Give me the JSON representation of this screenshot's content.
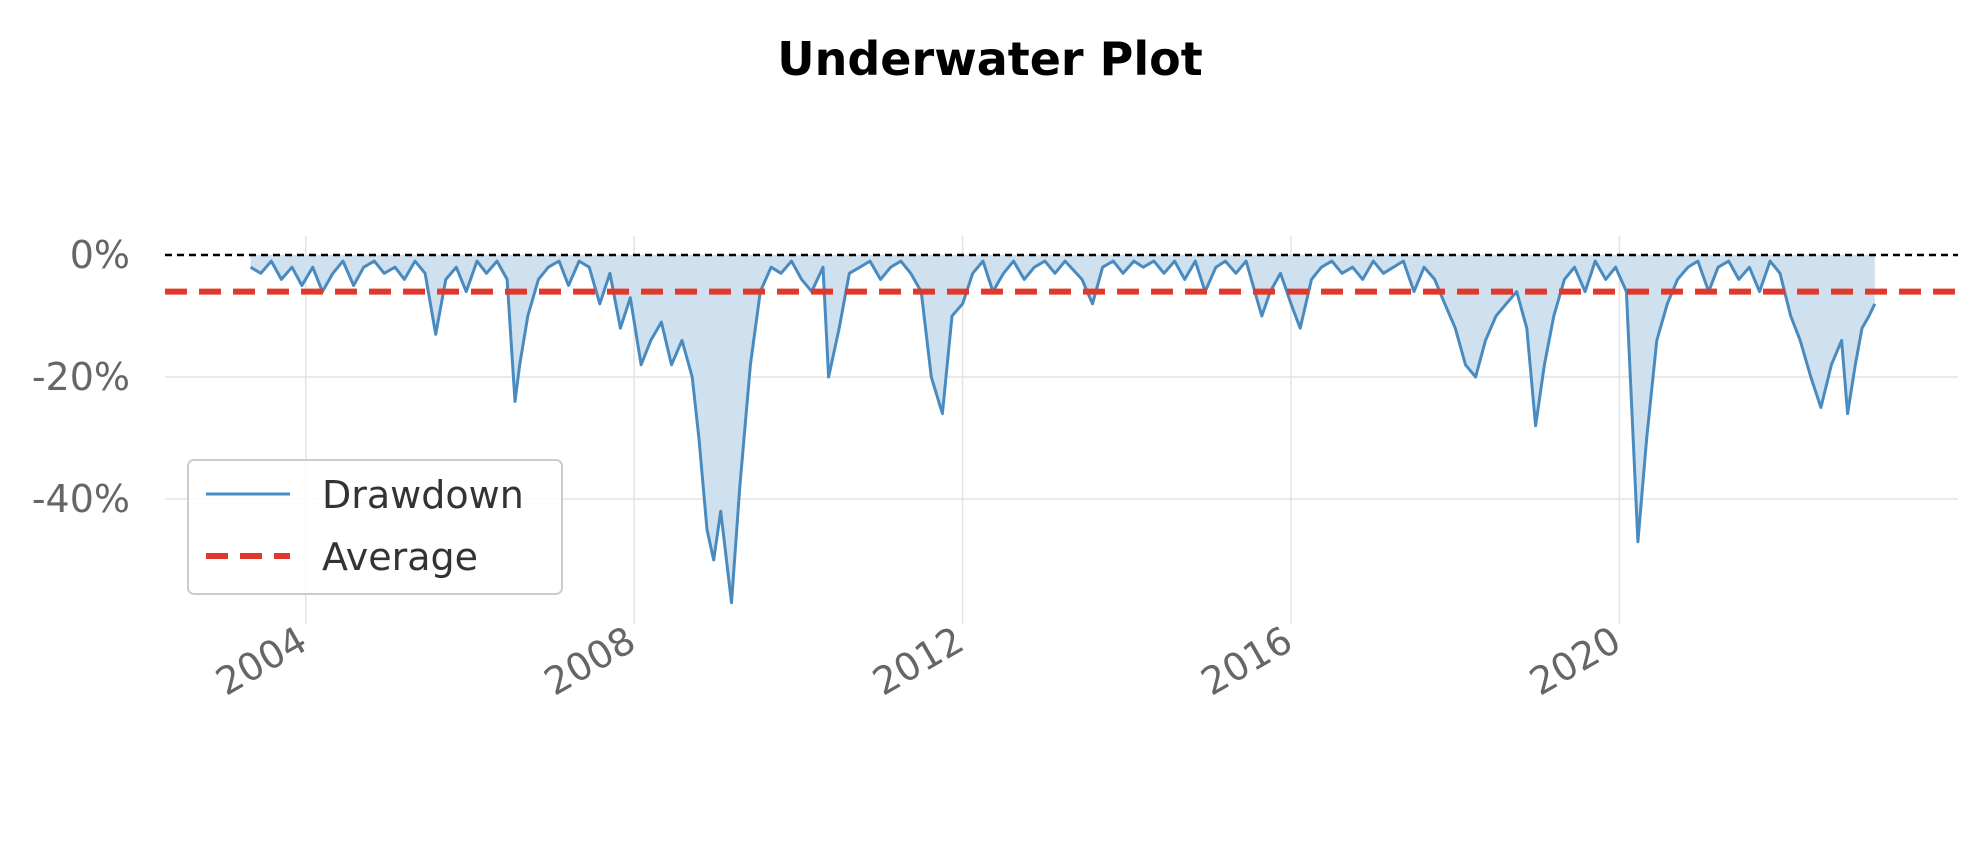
{
  "chart_data": {
    "type": "area",
    "title": "Underwater Plot",
    "xlabel": "",
    "ylabel": "",
    "x_ticks": [
      "2004",
      "2008",
      "2012",
      "2016",
      "2020"
    ],
    "y_ticks": [
      "0%",
      "-20%",
      "-40%"
    ],
    "y_tick_values": [
      0,
      -20,
      -40
    ],
    "xlim": [
      "2002-04-15",
      "2024-02-15"
    ],
    "ylim": [
      -57,
      0
    ],
    "grid": true,
    "legend_position": "lower-left",
    "series": [
      {
        "name": "Drawdown",
        "color": "#4a8bbf",
        "fill_color": "#cfe0ef",
        "x": [
          "2003-05-01",
          "2003-06-15",
          "2003-08-01",
          "2003-09-15",
          "2003-11-01",
          "2003-12-15",
          "2004-02-01",
          "2004-03-15",
          "2004-05-01",
          "2004-06-15",
          "2004-08-01",
          "2004-09-15",
          "2004-11-01",
          "2004-12-15",
          "2005-02-01",
          "2005-03-15",
          "2005-05-01",
          "2005-06-15",
          "2005-08-01",
          "2005-09-15",
          "2005-11-01",
          "2005-12-15",
          "2006-02-01",
          "2006-03-15",
          "2006-05-01",
          "2006-06-15",
          "2006-07-20",
          "2006-08-10",
          "2006-09-15",
          "2006-11-01",
          "2006-12-15",
          "2007-02-01",
          "2007-03-15",
          "2007-05-01",
          "2007-06-15",
          "2007-08-01",
          "2007-09-15",
          "2007-11-01",
          "2007-12-15",
          "2008-02-01",
          "2008-03-15",
          "2008-05-01",
          "2008-06-15",
          "2008-08-01",
          "2008-09-15",
          "2008-10-15",
          "2008-11-20",
          "2008-12-20",
          "2009-01-20",
          "2009-03-09",
          "2009-04-15",
          "2009-06-01",
          "2009-07-15",
          "2009-09-01",
          "2009-10-15",
          "2009-12-01",
          "2010-01-15",
          "2010-03-01",
          "2010-04-20",
          "2010-05-15",
          "2010-07-01",
          "2010-08-15",
          "2010-10-01",
          "2010-11-15",
          "2011-01-01",
          "2011-02-15",
          "2011-04-01",
          "2011-05-15",
          "2011-07-01",
          "2011-08-15",
          "2011-10-03",
          "2011-11-15",
          "2012-01-01",
          "2012-02-15",
          "2012-04-01",
          "2012-05-15",
          "2012-07-01",
          "2012-08-15",
          "2012-10-01",
          "2012-11-15",
          "2013-01-01",
          "2013-02-15",
          "2013-04-01",
          "2013-06-15",
          "2013-08-01",
          "2013-09-15",
          "2013-11-01",
          "2013-12-15",
          "2014-02-01",
          "2014-03-15",
          "2014-05-01",
          "2014-06-15",
          "2014-08-01",
          "2014-09-15",
          "2014-11-01",
          "2014-12-15",
          "2015-02-01",
          "2015-03-15",
          "2015-05-01",
          "2015-06-15",
          "2015-08-24",
          "2015-10-01",
          "2015-11-15",
          "2016-01-01",
          "2016-02-11",
          "2016-04-01",
          "2016-05-15",
          "2016-07-01",
          "2016-08-15",
          "2016-10-01",
          "2016-11-15",
          "2017-01-01",
          "2017-02-15",
          "2017-04-01",
          "2017-05-15",
          "2017-07-01",
          "2017-08-15",
          "2017-10-01",
          "2017-11-15",
          "2018-01-01",
          "2018-02-15",
          "2018-04-01",
          "2018-05-15",
          "2018-07-01",
          "2018-08-15",
          "2018-10-01",
          "2018-11-15",
          "2018-12-24",
          "2019-02-01",
          "2019-03-15",
          "2019-05-01",
          "2019-06-15",
          "2019-08-01",
          "2019-09-15",
          "2019-11-01",
          "2019-12-15",
          "2020-02-01",
          "2020-03-23",
          "2020-05-01",
          "2020-06-15",
          "2020-08-01",
          "2020-09-15",
          "2020-11-01",
          "2020-12-15",
          "2021-02-01",
          "2021-03-15",
          "2021-05-01",
          "2021-06-15",
          "2021-08-01",
          "2021-09-15",
          "2021-11-01",
          "2021-12-15",
          "2022-02-01",
          "2022-03-15",
          "2022-05-01",
          "2022-06-15",
          "2022-08-01",
          "2022-09-15",
          "2022-10-12",
          "2022-11-15",
          "2022-12-15",
          "2023-01-15",
          "2023-02-10"
        ],
        "values": [
          -2,
          -3,
          -1,
          -4,
          -2,
          -5,
          -2,
          -6,
          -3,
          -1,
          -5,
          -2,
          -1,
          -3,
          -2,
          -4,
          -1,
          -3,
          -13,
          -4,
          -2,
          -6,
          -1,
          -3,
          -1,
          -4,
          -24,
          -18,
          -10,
          -4,
          -2,
          -1,
          -5,
          -1,
          -2,
          -8,
          -3,
          -12,
          -7,
          -18,
          -14,
          -11,
          -18,
          -14,
          -20,
          -30,
          -45,
          -50,
          -42,
          -57,
          -38,
          -18,
          -6,
          -2,
          -3,
          -1,
          -4,
          -6,
          -2,
          -20,
          -12,
          -3,
          -2,
          -1,
          -4,
          -2,
          -1,
          -3,
          -6,
          -20,
          -26,
          -10,
          -8,
          -3,
          -1,
          -6,
          -3,
          -1,
          -4,
          -2,
          -1,
          -3,
          -1,
          -4,
          -8,
          -2,
          -1,
          -3,
          -1,
          -2,
          -1,
          -3,
          -1,
          -4,
          -1,
          -6,
          -2,
          -1,
          -3,
          -1,
          -10,
          -6,
          -3,
          -8,
          -12,
          -4,
          -2,
          -1,
          -3,
          -2,
          -4,
          -1,
          -3,
          -2,
          -1,
          -6,
          -2,
          -4,
          -8,
          -12,
          -18,
          -20,
          -14,
          -10,
          -8,
          -6,
          -12,
          -28,
          -18,
          -10,
          -4,
          -2,
          -6,
          -1,
          -4,
          -2,
          -6,
          -47,
          -30,
          -14,
          -8,
          -4,
          -2,
          -1,
          -6,
          -2,
          -1,
          -4,
          -2,
          -6,
          -1,
          -3,
          -10,
          -14,
          -20,
          -25,
          -18,
          -14,
          -26,
          -18,
          -12,
          -10,
          -8
        ]
      },
      {
        "name": "Average",
        "color": "#e0382b",
        "value": -6
      }
    ]
  }
}
